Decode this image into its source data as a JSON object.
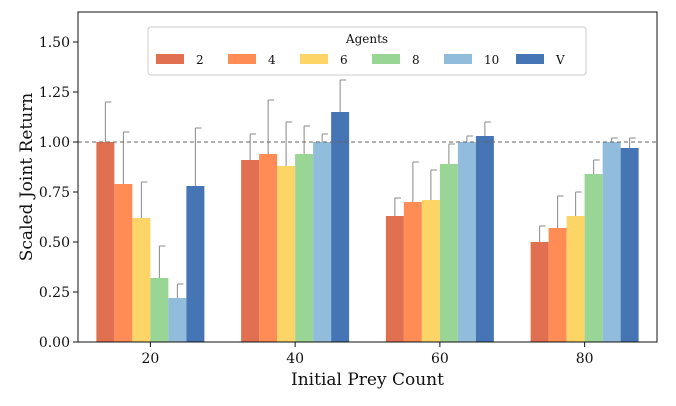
{
  "chart_data": {
    "type": "bar",
    "title": "",
    "xlabel": "Initial Prey Count",
    "ylabel": "Scaled Joint Return",
    "categories": [
      "20",
      "40",
      "60",
      "80"
    ],
    "ylim": [
      0,
      1.65
    ],
    "yticks": [
      "0.00",
      "0.25",
      "0.50",
      "0.75",
      "1.00",
      "1.25",
      "1.50"
    ],
    "ytick_values": [
      0,
      0.25,
      0.5,
      0.75,
      1.0,
      1.25,
      1.5
    ],
    "reference_line": 1.0,
    "legend": {
      "title": "Agents",
      "placement": "top-center"
    },
    "series": [
      {
        "name": "2",
        "color": "#e07050",
        "values": [
          1.0,
          0.91,
          0.63,
          0.5
        ],
        "errors": [
          0.2,
          0.13,
          0.09,
          0.08
        ]
      },
      {
        "name": "4",
        "color": "#ff8c55",
        "values": [
          0.79,
          0.94,
          0.7,
          0.57
        ],
        "errors": [
          0.26,
          0.27,
          0.2,
          0.16
        ]
      },
      {
        "name": "6",
        "color": "#fdd466",
        "values": [
          0.62,
          0.88,
          0.71,
          0.63
        ],
        "errors": [
          0.18,
          0.22,
          0.15,
          0.12
        ]
      },
      {
        "name": "8",
        "color": "#99d594",
        "values": [
          0.32,
          0.94,
          0.89,
          0.84
        ],
        "errors": [
          0.16,
          0.14,
          0.1,
          0.07
        ]
      },
      {
        "name": "10",
        "color": "#92bcdc",
        "values": [
          0.22,
          1.0,
          1.0,
          1.0
        ],
        "errors": [
          0.07,
          0.04,
          0.03,
          0.02
        ]
      },
      {
        "name": "V",
        "color": "#4575b4",
        "values": [
          0.78,
          1.15,
          1.03,
          0.97
        ],
        "errors": [
          0.29,
          0.16,
          0.07,
          0.05
        ]
      }
    ]
  }
}
